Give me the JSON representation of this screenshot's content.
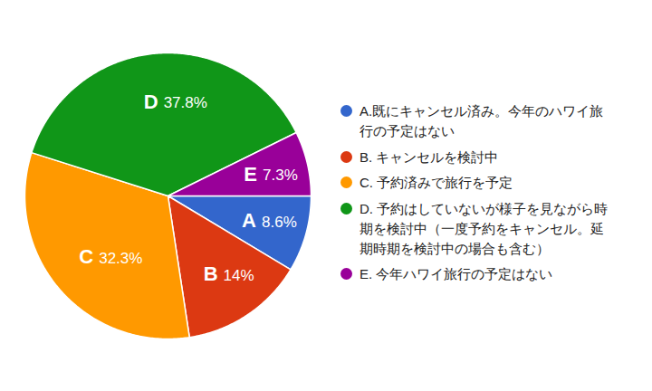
{
  "chart_data": {
    "type": "pie",
    "categories": [
      "A.既にキャンセル済み。今年のハワイ旅行の予定はない",
      "B. キャンセルを検討中",
      "C. 予約済みで旅行を予定",
      "D. 予約はしていないが様子を見ながら時期を検討中（一度予約をキャンセル。延期時期を検討中の場合も含む）",
      "E. 今年ハワイ旅行の予定はない"
    ],
    "slice_labels": [
      "A",
      "B",
      "C",
      "D",
      "E"
    ],
    "values": [
      8.6,
      14,
      32.3,
      37.8,
      7.3
    ],
    "value_labels": [
      "8.6%",
      "14%",
      "32.3%",
      "37.8%",
      "7.3%"
    ],
    "colors": [
      "#3366cc",
      "#dc3912",
      "#ff9900",
      "#109618",
      "#990099"
    ],
    "data_labels": true,
    "legend": "right"
  }
}
